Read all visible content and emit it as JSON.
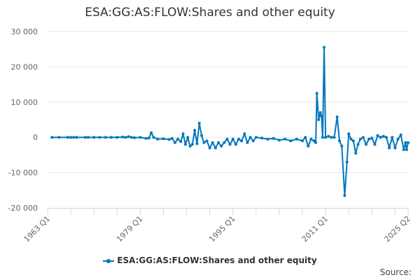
{
  "chart_data": {
    "type": "line",
    "title": "ESA:GG:AS:FLOW:Shares and other equity",
    "xlabel": "",
    "ylabel": "",
    "xlim": [
      1963.0,
      2025.25
    ],
    "ylim": [
      -20000,
      30000
    ],
    "yticks": [
      -20000,
      -10000,
      0,
      10000,
      20000,
      30000
    ],
    "ytick_labels": [
      "-20 000",
      "-10 000",
      "0",
      "10 000",
      "20 000",
      "30 000"
    ],
    "xtick_labels": [
      "1963 Q1",
      "1979 Q1",
      "1995 Q1",
      "2011 Q1",
      "2025 Q2"
    ],
    "xtick_values": [
      1963.0,
      1979.0,
      1995.0,
      2011.0,
      2025.25
    ],
    "grid": true,
    "legend_position": "bottom",
    "series": [
      {
        "name": "ESA:GG:AS:FLOW:Shares and other equity",
        "color": "#0077bb",
        "points": [
          [
            1963.75,
            0
          ],
          [
            1965.0,
            0
          ],
          [
            1966.5,
            0
          ],
          [
            1967.0,
            0
          ],
          [
            1967.5,
            0
          ],
          [
            1968.0,
            0
          ],
          [
            1969.5,
            0
          ],
          [
            1970.0,
            0
          ],
          [
            1971.0,
            0
          ],
          [
            1972.0,
            0
          ],
          [
            1973.0,
            0
          ],
          [
            1974.0,
            0
          ],
          [
            1975.0,
            0
          ],
          [
            1976.0,
            100
          ],
          [
            1976.5,
            0
          ],
          [
            1977.0,
            200
          ],
          [
            1977.5,
            0
          ],
          [
            1978.0,
            -100
          ],
          [
            1979.0,
            0
          ],
          [
            1980.0,
            -300
          ],
          [
            1980.5,
            -200
          ],
          [
            1980.9,
            1300
          ],
          [
            1981.3,
            0
          ],
          [
            1982.0,
            -500
          ],
          [
            1983.0,
            -400
          ],
          [
            1984.0,
            -600
          ],
          [
            1984.5,
            -300
          ],
          [
            1985.0,
            -1500
          ],
          [
            1985.5,
            -500
          ],
          [
            1986.0,
            -1200
          ],
          [
            1986.4,
            1000
          ],
          [
            1986.8,
            -2000
          ],
          [
            1987.2,
            0
          ],
          [
            1987.6,
            -2500
          ],
          [
            1988.0,
            -2000
          ],
          [
            1988.4,
            2000
          ],
          [
            1988.8,
            -1800
          ],
          [
            1989.2,
            4000
          ],
          [
            1989.6,
            500
          ],
          [
            1990.0,
            -1500
          ],
          [
            1990.5,
            -1000
          ],
          [
            1991.0,
            -3000
          ],
          [
            1991.5,
            -1500
          ],
          [
            1992.0,
            -3000
          ],
          [
            1992.5,
            -1500
          ],
          [
            1993.0,
            -2500
          ],
          [
            1993.5,
            -1500
          ],
          [
            1994.0,
            -500
          ],
          [
            1994.5,
            -2000
          ],
          [
            1995.0,
            -500
          ],
          [
            1995.5,
            -2000
          ],
          [
            1996.0,
            -500
          ],
          [
            1996.5,
            -1000
          ],
          [
            1997.0,
            1000
          ],
          [
            1997.5,
            -1500
          ],
          [
            1998.0,
            0
          ],
          [
            1998.5,
            -1000
          ],
          [
            1999.0,
            0
          ],
          [
            2000.0,
            -200
          ],
          [
            2001.0,
            -500
          ],
          [
            2002.0,
            -300
          ],
          [
            2003.0,
            -800
          ],
          [
            2004.0,
            -500
          ],
          [
            2005.0,
            -1000
          ],
          [
            2006.0,
            -500
          ],
          [
            2007.0,
            -1000
          ],
          [
            2007.5,
            0
          ],
          [
            2008.0,
            -2500
          ],
          [
            2008.5,
            -500
          ],
          [
            2009.0,
            -1000
          ],
          [
            2009.3,
            -1500
          ],
          [
            2009.5,
            12500
          ],
          [
            2009.8,
            5000
          ],
          [
            2010.1,
            7000
          ],
          [
            2010.3,
            6000
          ],
          [
            2010.5,
            0
          ],
          [
            2010.75,
            25500
          ],
          [
            2011.0,
            0
          ],
          [
            2011.5,
            300
          ],
          [
            2012.0,
            0
          ],
          [
            2012.5,
            0
          ],
          [
            2013.0,
            5800
          ],
          [
            2013.4,
            -1000
          ],
          [
            2013.8,
            -2500
          ],
          [
            2014.3,
            -16500
          ],
          [
            2014.7,
            -7000
          ],
          [
            2015.0,
            1000
          ],
          [
            2015.4,
            -500
          ],
          [
            2015.8,
            -1000
          ],
          [
            2016.2,
            -4500
          ],
          [
            2016.6,
            -2000
          ],
          [
            2017.0,
            -500
          ],
          [
            2017.5,
            0
          ],
          [
            2018.0,
            -2000
          ],
          [
            2018.5,
            -500
          ],
          [
            2019.0,
            -200
          ],
          [
            2019.5,
            -2000
          ],
          [
            2020.0,
            500
          ],
          [
            2020.5,
            0
          ],
          [
            2021.0,
            300
          ],
          [
            2021.5,
            0
          ],
          [
            2022.0,
            -3000
          ],
          [
            2022.5,
            0
          ],
          [
            2023.0,
            -3000
          ],
          [
            2023.5,
            -500
          ],
          [
            2024.0,
            700
          ],
          [
            2024.5,
            -3500
          ],
          [
            2024.8,
            -1500
          ],
          [
            2025.0,
            -3500
          ],
          [
            2025.25,
            -1500
          ]
        ]
      }
    ]
  },
  "legend": {
    "label": "ESA:GG:AS:FLOW:Shares and other equity"
  },
  "source_label": "Source:"
}
